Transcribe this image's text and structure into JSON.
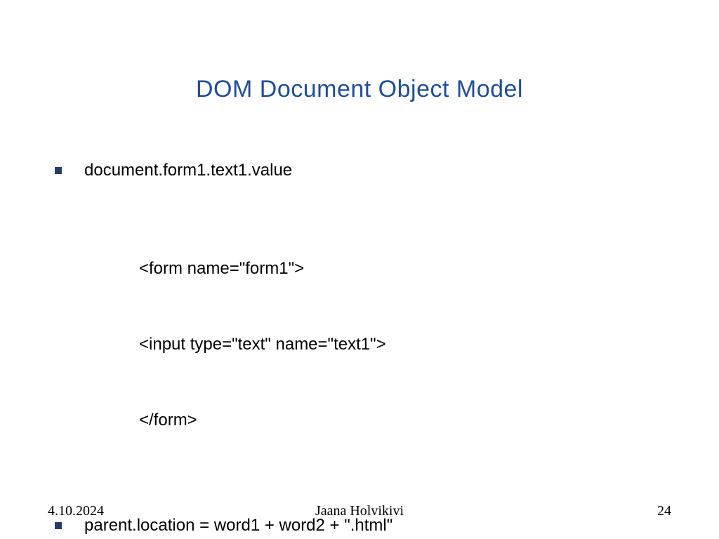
{
  "colors": {
    "title": "#1f4e9c",
    "bullet": "#2a3b66",
    "text": "#000000",
    "background": "#ffffff"
  },
  "typography": {
    "title_fontsize": 34,
    "body_fontsize": 24,
    "footer_fontsize": 20,
    "title_font": "Verdana",
    "body_font": "Verdana",
    "footer_font": "Times New Roman"
  },
  "slide": {
    "title": "DOM Document Object Model",
    "bullets": [
      "document.form1.text1.value",
      "parent.location = word1 + word2 + \".html\""
    ],
    "code_lines": [
      "<form name=\"form1\">",
      "<input type=\"text\" name=\"text1\">",
      "</form>"
    ]
  },
  "footer": {
    "date": "4.10.2024",
    "author": "Jaana Holvikivi",
    "page": "24"
  }
}
